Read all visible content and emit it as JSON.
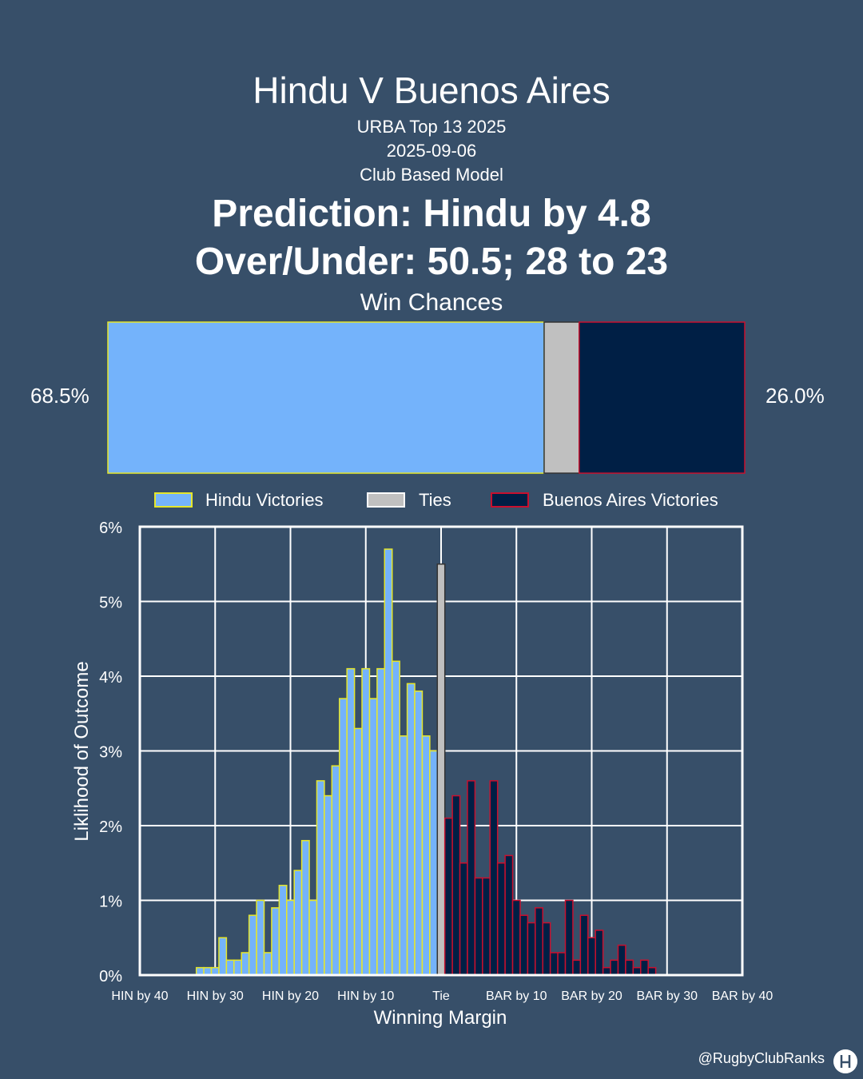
{
  "header": {
    "title": "Hindu V Buenos Aires",
    "competition": "URBA Top 13 2025",
    "date": "2025-09-06",
    "model": "Club Based Model",
    "prediction": "Prediction: Hindu by 4.8",
    "over_under": "Over/Under: 50.5; 28 to 23",
    "win_chances_label": "Win Chances"
  },
  "win_chances": {
    "home_pct": 68.5,
    "tie_pct": 5.5,
    "away_pct": 26.0,
    "home_label": "68.5%",
    "away_label": "26.0%"
  },
  "colors": {
    "background": "#374f69",
    "home_fill": "#74b3fb",
    "home_edge": "#e6e62a",
    "tie_fill": "#c0c0c0",
    "tie_edge": "#333333",
    "away_fill": "#001f45",
    "away_edge": "#c8102e",
    "grid": "#ffffff"
  },
  "watermark": "@RugbyClubRanks",
  "chart_data": {
    "type": "bar",
    "xlabel": "Winning Margin",
    "ylabel": "Liklihood of Outcome",
    "xlim": [
      -40,
      40
    ],
    "ylim": [
      0,
      6
    ],
    "grid": true,
    "legend_position": "top",
    "yticks": [
      0,
      1,
      2,
      3,
      4,
      5,
      6
    ],
    "ytick_labels": [
      "0%",
      "1%",
      "2%",
      "3%",
      "4%",
      "5%",
      "6%"
    ],
    "xticks": [
      -40,
      -30,
      -20,
      -10,
      0,
      10,
      20,
      30,
      40
    ],
    "xtick_labels": [
      "HIN by 40",
      "HIN by 30",
      "HIN by 20",
      "HIN by 10",
      "Tie",
      "BAR by 10",
      "BAR by 20",
      "BAR by 30",
      "BAR by 40"
    ],
    "series": [
      {
        "name": "Hindu Victories",
        "x": [
          -32,
          -31,
          -30,
          -29,
          -28,
          -27,
          -26,
          -25,
          -24,
          -23,
          -22,
          -21,
          -20,
          -19,
          -18,
          -17,
          -16,
          -15,
          -14,
          -13,
          -12,
          -11,
          -10,
          -9,
          -8,
          -7,
          -6,
          -5,
          -4,
          -3,
          -2,
          -1
        ],
        "values": [
          0.1,
          0.1,
          0.1,
          0.5,
          0.2,
          0.2,
          0.3,
          0.8,
          1.0,
          0.3,
          0.9,
          1.2,
          1.0,
          1.4,
          1.8,
          1.0,
          2.6,
          2.4,
          2.8,
          3.7,
          4.1,
          3.3,
          4.1,
          3.7,
          4.1,
          5.7,
          4.2,
          3.2,
          3.9,
          3.8,
          3.2,
          3.0
        ]
      },
      {
        "name": "Ties",
        "x": [
          0
        ],
        "values": [
          5.5
        ]
      },
      {
        "name": "Buenos Aires Victories",
        "x": [
          1,
          2,
          3,
          4,
          5,
          6,
          7,
          8,
          9,
          10,
          11,
          12,
          13,
          14,
          15,
          16,
          17,
          18,
          19,
          20,
          21,
          22,
          23,
          24,
          25,
          26,
          27,
          28
        ],
        "values": [
          2.1,
          2.4,
          1.5,
          2.6,
          1.3,
          1.3,
          2.6,
          1.5,
          1.6,
          1.0,
          0.8,
          0.7,
          0.9,
          0.7,
          0.3,
          0.3,
          1.0,
          0.2,
          0.8,
          0.5,
          0.6,
          0.1,
          0.2,
          0.4,
          0.2,
          0.1,
          0.2,
          0.1
        ]
      }
    ]
  }
}
